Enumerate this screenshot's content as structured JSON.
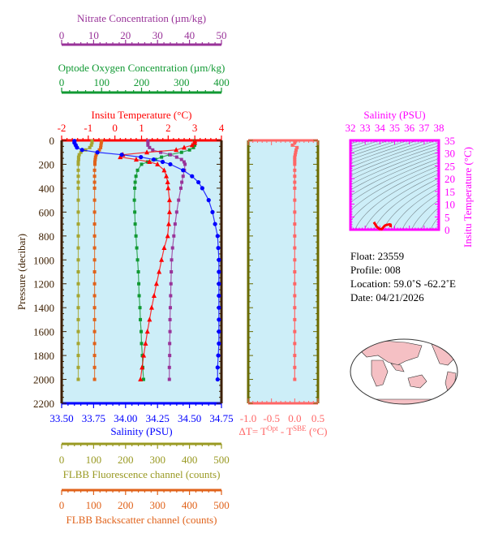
{
  "chart_data": [
    {
      "type": "line",
      "ylabel": "Pressure (decibar)",
      "ylim": [
        2200,
        0
      ],
      "yticks": [
        0,
        200,
        400,
        600,
        800,
        1000,
        1200,
        1400,
        1600,
        1800,
        2000,
        2200
      ],
      "pressure": [
        5,
        20,
        40,
        60,
        80,
        100,
        120,
        140,
        160,
        180,
        200,
        250,
        300,
        350,
        400,
        500,
        600,
        700,
        800,
        900,
        1000,
        1100,
        1200,
        1300,
        1400,
        1500,
        1600,
        1700,
        1800,
        1900,
        2000
      ],
      "background": "#cdeef8",
      "axes": [
        {
          "id": "nitrate",
          "label": "Nitrate Concentration (µm/kg)",
          "range": [
            0,
            50
          ],
          "ticks": [
            0,
            10,
            20,
            30,
            40,
            50
          ],
          "ticklabels": [
            "0",
            "10",
            "20",
            "30",
            "40",
            "50"
          ],
          "color": "#993399"
        },
        {
          "id": "oxygen",
          "label": "Optode Oxygen Concentration (µm/kg)",
          "range": [
            0,
            400
          ],
          "ticks": [
            0,
            100,
            200,
            300,
            400
          ],
          "ticklabels": [
            "0",
            "100",
            "200",
            "300",
            "400"
          ],
          "color": "#119933"
        },
        {
          "id": "temperature",
          "label": "Insitu Temperature (°C)",
          "range": [
            -2,
            4
          ],
          "ticks": [
            -2,
            -1,
            0,
            1,
            2,
            3,
            4
          ],
          "ticklabels": [
            "-2",
            "-1",
            "0",
            "1",
            "2",
            "3",
            "4"
          ],
          "color": "#ff0000"
        },
        {
          "id": "salinity",
          "label": "Salinity (PSU)",
          "range": [
            33.5,
            34.75
          ],
          "ticks": [
            33.5,
            33.75,
            34.0,
            34.25,
            34.5,
            34.75
          ],
          "ticklabels": [
            "33.50",
            "33.75",
            "34.00",
            "34.25",
            "34.50",
            "34.75"
          ],
          "color": "#0000ff"
        },
        {
          "id": "fluorescence",
          "label": "FLBB Fluorescence channel (counts)",
          "range": [
            0,
            500
          ],
          "ticks": [
            0,
            100,
            200,
            300,
            400,
            500
          ],
          "ticklabels": [
            "0",
            "100",
            "200",
            "300",
            "400",
            "500"
          ],
          "color": "#999922"
        },
        {
          "id": "backscatter",
          "label": "FLBB Backscatter channel (counts)",
          "range": [
            0,
            500
          ],
          "ticks": [
            0,
            100,
            200,
            300,
            400,
            500
          ],
          "ticklabels": [
            "0",
            "100",
            "200",
            "300",
            "400",
            "500"
          ],
          "color": "#e0621a"
        }
      ],
      "series": [
        {
          "axis": "fluorescence",
          "color": "#a5a530",
          "marker": "square",
          "values": [
            95,
            95,
            93,
            88,
            75,
            60,
            55,
            53,
            53,
            52,
            52,
            52,
            52,
            52,
            52,
            52,
            52,
            52,
            52,
            52,
            52,
            52,
            52,
            52,
            52,
            52,
            52,
            52,
            52,
            52,
            52
          ]
        },
        {
          "axis": "backscatter",
          "color": "#e0621a",
          "marker": "square",
          "values": [
            125,
            124,
            123,
            122,
            118,
            112,
            108,
            106,
            105,
            104,
            104,
            103,
            103,
            103,
            103,
            103,
            103,
            103,
            103,
            103,
            103,
            103,
            103,
            103,
            103,
            103,
            103,
            103,
            103,
            103,
            103
          ]
        },
        {
          "axis": "oxygen",
          "color": "#119933",
          "marker": "square",
          "values": [
            333,
            333,
            333,
            330,
            320,
            300,
            270,
            250,
            235,
            215,
            200,
            190,
            186,
            184,
            183,
            182,
            183,
            184,
            186,
            188,
            190,
            192,
            193,
            194,
            196,
            197,
            199,
            200,
            202,
            203,
            205
          ]
        },
        {
          "axis": "nitrate",
          "color": "#993399",
          "marker": "square",
          "values": [
            27,
            27,
            27,
            27.5,
            28.5,
            31,
            34,
            36,
            37.5,
            38.3,
            38.6,
            38.4,
            38,
            37.6,
            37.3,
            36.6,
            36,
            35.5,
            35.1,
            34.7,
            34.4,
            34.3,
            34.2,
            34.1,
            34.0,
            33.9,
            33.9,
            33.8,
            33.8,
            33.7,
            33.7
          ]
        },
        {
          "axis": "temperature",
          "color": "#ff0000",
          "marker": "triangle",
          "values": [
            3.0,
            3.0,
            2.9,
            2.6,
            2.3,
            1.2,
            0.3,
            0.2,
            0.8,
            1.3,
            1.6,
            1.85,
            1.93,
            1.98,
            2.0,
            2.05,
            2.05,
            2.02,
            1.98,
            1.85,
            1.75,
            1.66,
            1.56,
            1.47,
            1.38,
            1.3,
            1.22,
            1.15,
            1.08,
            1.02,
            0.96
          ]
        },
        {
          "axis": "salinity",
          "color": "#0000ff",
          "marker": "circle",
          "values": [
            33.6,
            33.6,
            33.61,
            33.62,
            33.66,
            33.78,
            33.97,
            34.12,
            34.22,
            34.29,
            34.35,
            34.45,
            34.52,
            34.57,
            34.6,
            34.65,
            34.68,
            34.7,
            34.72,
            34.725,
            34.73,
            34.73,
            34.73,
            34.73,
            34.73,
            34.73,
            34.73,
            34.73,
            34.725,
            34.72,
            34.72
          ]
        }
      ]
    },
    {
      "type": "line",
      "xlabel_parts": [
        "ΔT= T",
        "Opt",
        " - T",
        "SBE",
        " (°C)"
      ],
      "xlim": [
        -1.0,
        0.5
      ],
      "xticks": [
        -1.0,
        -0.5,
        0.0,
        0.5
      ],
      "xticklabels": [
        "-1.0",
        "-0.5",
        "0.0",
        "0.5"
      ],
      "ylim": [
        2200,
        0
      ],
      "color": "#ff6666",
      "values": [
        0.02,
        0.0,
        -0.05,
        0.05,
        0.03,
        0.02,
        0.01,
        0.0,
        0.0,
        0.0,
        0.0,
        0.0,
        0.0,
        0.0,
        0.0,
        0.0,
        0.0,
        0.0,
        0.0,
        0.0,
        0.0,
        0.0,
        0.0,
        0.0,
        0.0,
        0.0,
        0.0,
        0.0,
        0.0,
        0.0,
        0.0
      ]
    },
    {
      "type": "line",
      "xlabel": "Salinity (PSU)",
      "ylabel": "Insitu Temperature (°C)",
      "xlim": [
        32,
        38
      ],
      "xticks": [
        32,
        33,
        34,
        35,
        36,
        37,
        38
      ],
      "ylim": [
        0,
        35
      ],
      "yticks": [
        0,
        5,
        10,
        15,
        20,
        25,
        30,
        35
      ],
      "color": "#ff00ff",
      "curve_color": "#ff0000",
      "contours": "density isopycnals",
      "note": "T-S curve uses the profile salinity and temperature series"
    }
  ],
  "info": {
    "float": "Float:  23559",
    "profile": "Profile:  008",
    "location": "Location:  59.0˚S  -62.2˚E",
    "date": "Date:  04/21/2026"
  },
  "map": {
    "ocean_color": "#ffffff",
    "land_color": "#f5c0c4"
  }
}
